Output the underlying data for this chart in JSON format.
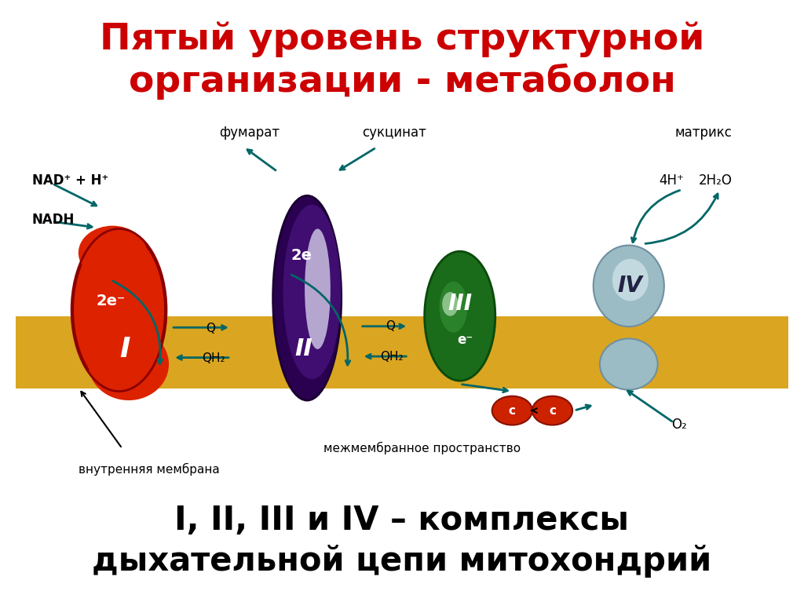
{
  "title_line1": "Пятый уровень структурной",
  "title_line2": "организации - метаболон",
  "title_color": "#CC0000",
  "bottom_text_line1": "I, II, III и IV – комплексы",
  "bottom_text_line2": "дыхательной цепи митохондрий",
  "bottom_text_color": "#000000",
  "bg_color": "#FFFFFF",
  "membrane_color": "#DAA520",
  "complex1_color": "#DD2200",
  "complex2_color": "#3A006A",
  "complex2_highlight": "#8878B8",
  "complex3_color": "#1A6B1A",
  "complex3_highlight": "#3A9A3A",
  "complex4_color": "#9BBBC5",
  "complex4_edge": "#7090A0",
  "cytochrome_color": "#CC2200",
  "arrow_color": "#006666",
  "label_fumarat": "фумарат",
  "label_sukcinat": "сукцинат",
  "label_matriks": "матрикс",
  "label_nadh": "NADH",
  "label_nad": "NAD⁺ + H⁺",
  "label_Q1": "Q",
  "label_QH2_1": "QH₂",
  "label_2e1": "2e⁻",
  "label_Q2": "Q",
  "label_QH2_2": "QH₂",
  "label_2e2": "2e",
  "label_eminus": "e⁻",
  "label_4H": "4H⁺",
  "label_2H2O": "2H₂O",
  "label_O2": "O₂",
  "label_vnutr": "внутренняя мембрана",
  "label_mezhmembr": "межмембранное пространство",
  "label_I": "I",
  "label_II": "II",
  "label_III": "III",
  "label_IV": "IV",
  "label_c1": "c",
  "label_c2": "c"
}
